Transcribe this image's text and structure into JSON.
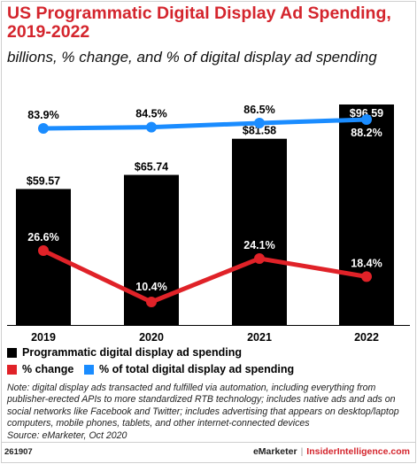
{
  "header": {
    "title": "US Programmatic Digital Display Ad Spending, 2019-2022",
    "subtitle": "billions, % change, and % of digital display ad spending"
  },
  "chart_data": {
    "type": "bar",
    "categories": [
      "2019",
      "2020",
      "2021",
      "2022"
    ],
    "series": [
      {
        "name": "Programmatic digital display ad spending",
        "kind": "bar",
        "color": "#000000",
        "values": [
          59.57,
          65.74,
          81.58,
          96.59
        ],
        "labels": [
          "$59.57",
          "$65.74",
          "$81.58",
          "$96.59"
        ]
      },
      {
        "name": "% change",
        "kind": "line",
        "color": "#e02228",
        "values": [
          26.6,
          10.4,
          24.1,
          18.4
        ],
        "labels": [
          "26.6%",
          "10.4%",
          "24.1%",
          "18.4%"
        ]
      },
      {
        "name": "% of total digital display ad spending",
        "kind": "line",
        "color": "#1a8cff",
        "values": [
          83.9,
          84.5,
          86.5,
          88.2
        ],
        "labels": [
          "83.9%",
          "84.5%",
          "86.5%",
          "88.2%"
        ]
      }
    ],
    "bar_ylim": [
      0,
      100
    ],
    "legend_position": "bottom",
    "grid": false
  },
  "legend": {
    "bar": "Programmatic digital display ad spending",
    "change": "% change",
    "share": "% of total digital display ad spending"
  },
  "colors": {
    "accent": "#d4252d",
    "bar": "#000000",
    "change": "#e02228",
    "share": "#1a8cff"
  },
  "note": "Note: digital display ads transacted and fulfilled via automation, including everything from publisher-erected APIs to more standardized RTB technology; includes native ads and ads on social networks like Facebook and Twitter; includes advertising that appears on desktop/laptop computers, mobile phones, tablets, and other internet-connected devices",
  "source": "Source: eMarketer, Oct 2020",
  "footer": {
    "chart_id": "261907",
    "brand_left": "eMarketer",
    "separator": "|",
    "brand_right": "InsiderIntelligence.com"
  }
}
